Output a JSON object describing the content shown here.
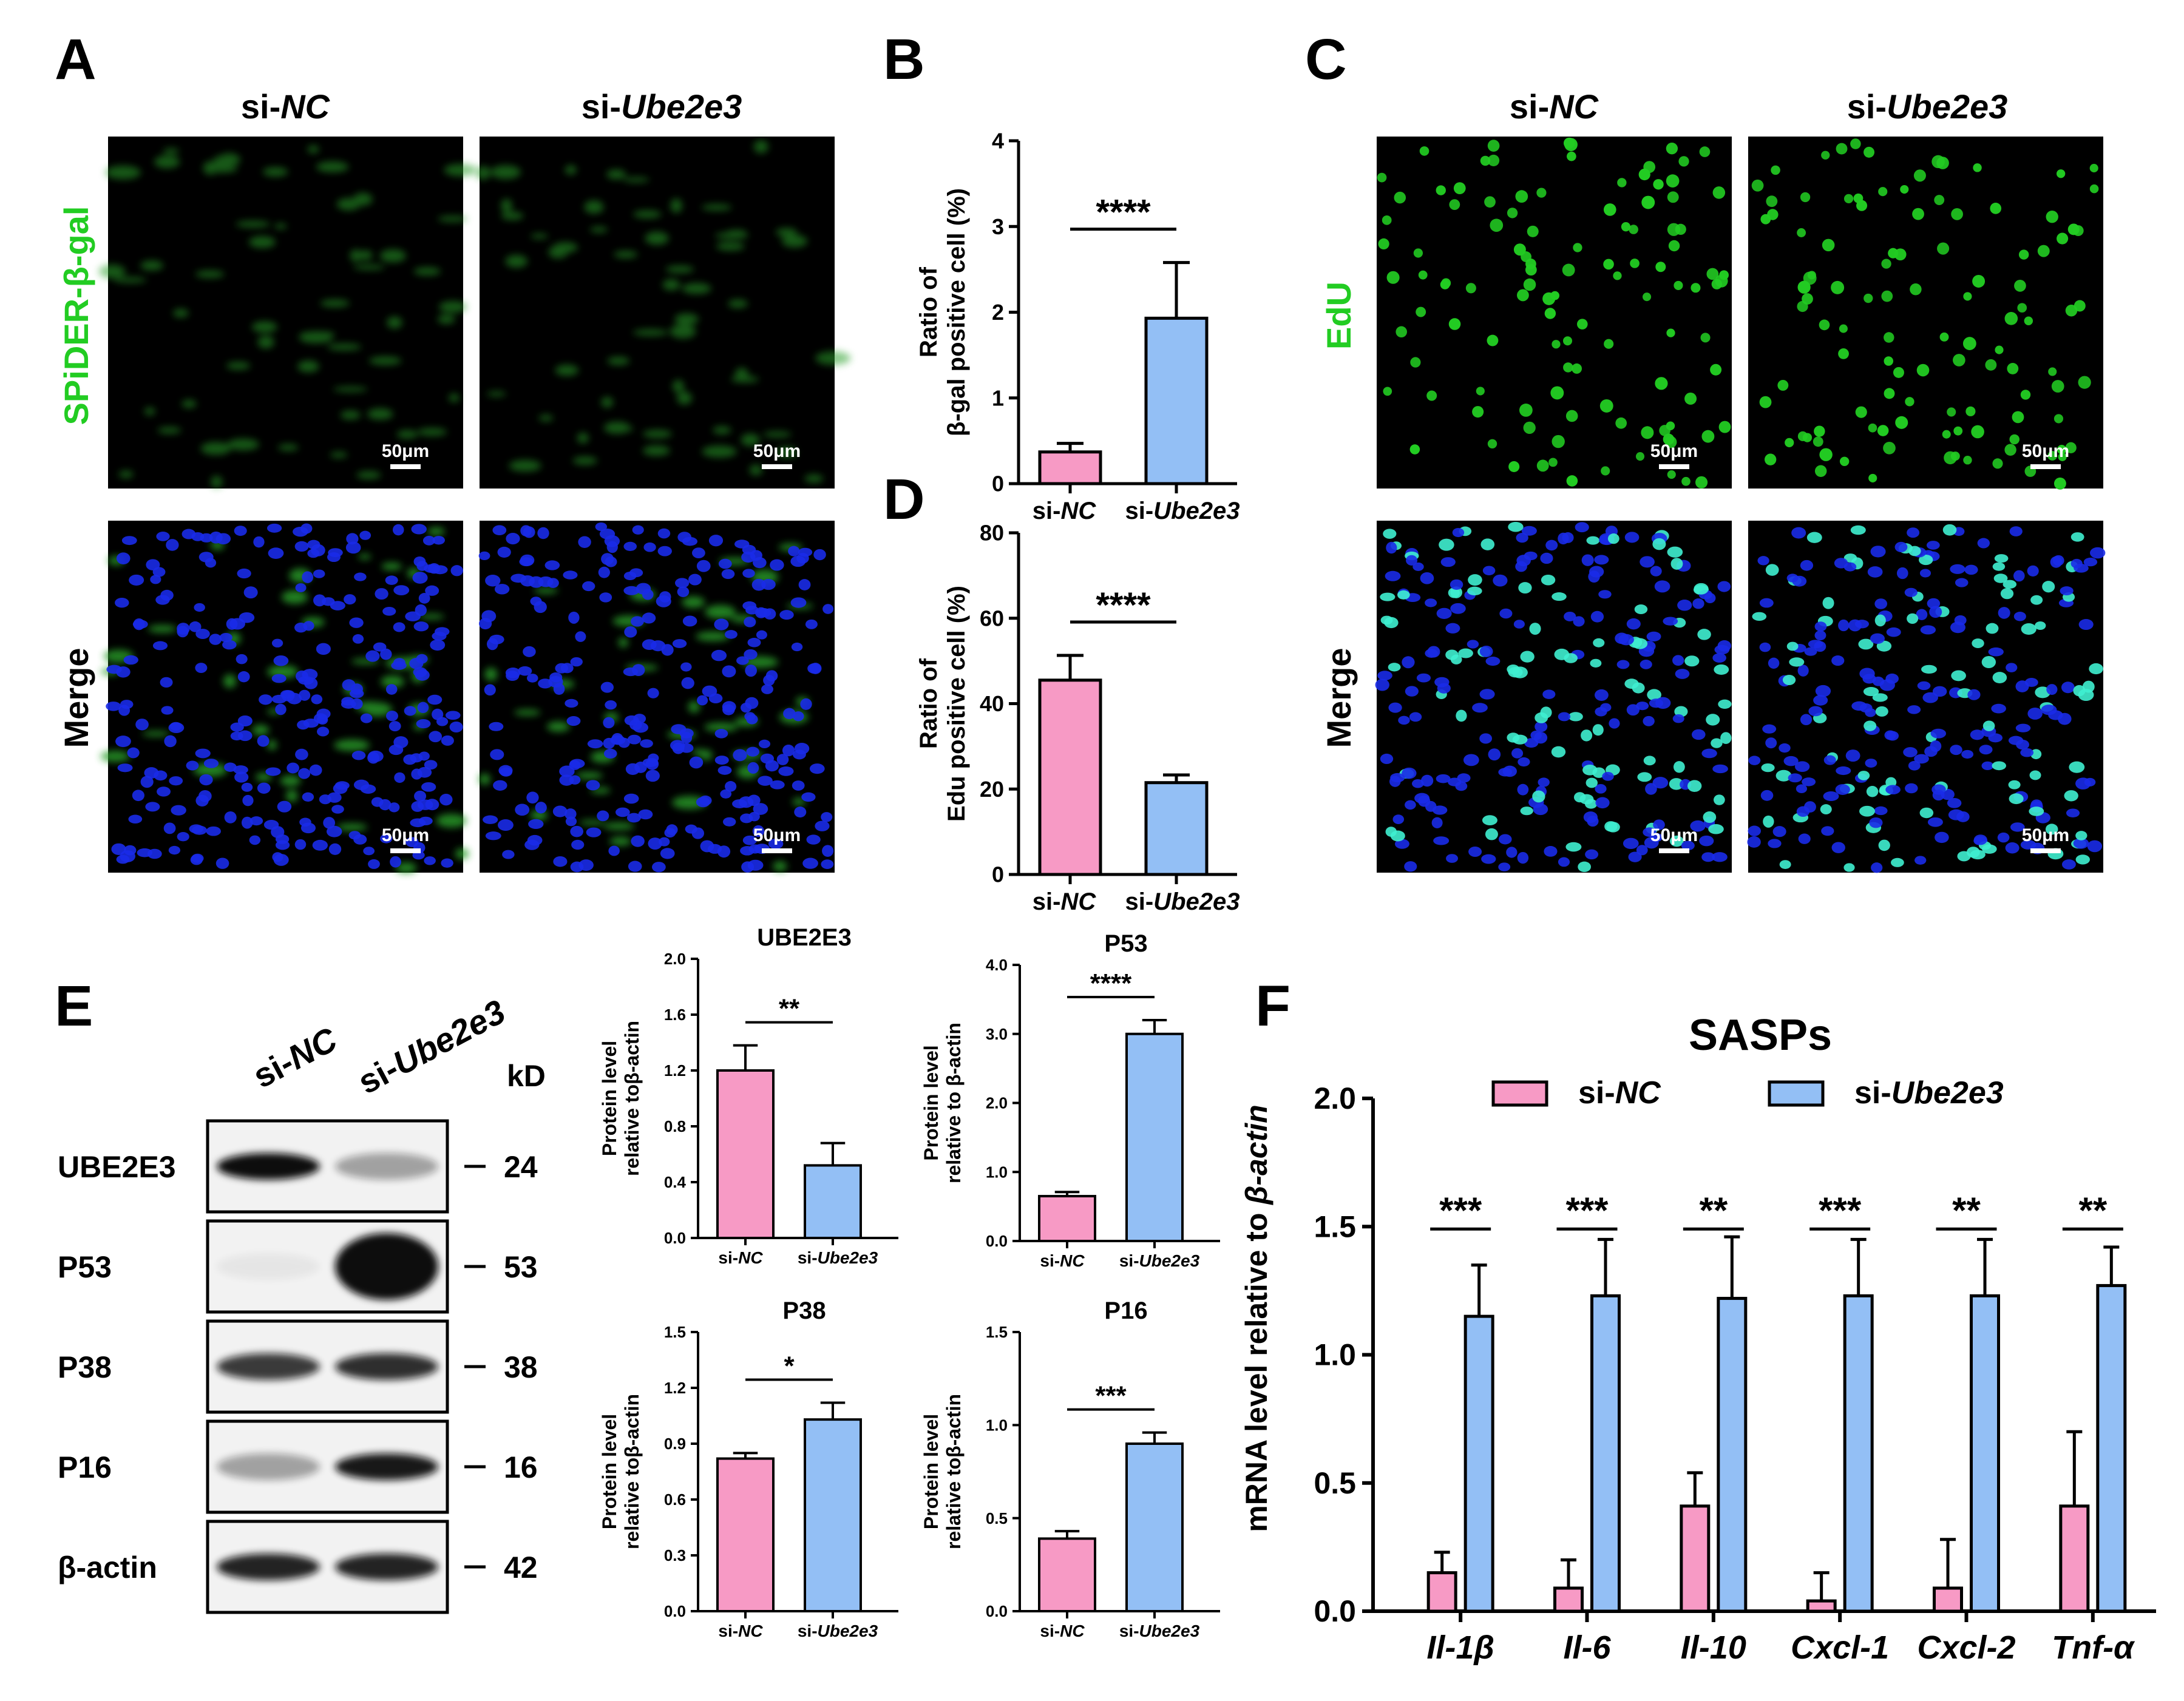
{
  "colors": {
    "si_nc": "#f79ac5",
    "si_ube2e3": "#93bff5",
    "edu_green": "#22cc22",
    "nucleus_blue": "#1a2be8",
    "merge_cyan": "#3ff0d0"
  },
  "panel_a": {
    "letter": "A",
    "col_labels": [
      {
        "prefix": "si-",
        "gene": "NC"
      },
      {
        "prefix": "si-",
        "gene": "Ube2e3"
      }
    ],
    "row_labels": [
      "SPiDER-β-gal",
      "Merge"
    ],
    "scale_label": "50μm"
  },
  "panel_c": {
    "letter": "C",
    "col_labels": [
      {
        "prefix": "si-",
        "gene": "NC"
      },
      {
        "prefix": "si-",
        "gene": "Ube2e3"
      }
    ],
    "row_labels": [
      "EdU",
      "Merge"
    ],
    "scale_label": "50μm"
  },
  "panel_e": {
    "letter": "E",
    "lane_labels": [
      {
        "prefix": "si-",
        "gene": "NC"
      },
      {
        "prefix": "si-",
        "gene": "Ube2e3"
      }
    ],
    "kd_label": "kD",
    "rows": [
      {
        "protein": "UBE2E3",
        "kd": "24",
        "bands": [
          1.0,
          0.35
        ]
      },
      {
        "protein": "P53",
        "kd": "53",
        "bands": [
          0.05,
          1.0
        ]
      },
      {
        "protein": "P38",
        "kd": "38",
        "bands": [
          0.8,
          0.85
        ]
      },
      {
        "protein": "P16",
        "kd": "16",
        "bands": [
          0.35,
          0.95
        ]
      },
      {
        "protein": "β-actin",
        "kd": "42",
        "bands": [
          0.9,
          0.9
        ]
      }
    ]
  },
  "panel_f": {
    "letter": "F"
  },
  "letters": {
    "b": "B",
    "d": "D"
  },
  "chart_data": [
    {
      "id": "B",
      "type": "bar",
      "title": "",
      "ylabel": [
        "Ratio of",
        "β-gal positive cell (%)"
      ],
      "categories": [
        {
          "prefix": "si-",
          "gene": "NC"
        },
        {
          "prefix": "si-",
          "gene": "Ube2e3"
        }
      ],
      "values": [
        0.37,
        1.93
      ],
      "errors": [
        0.1,
        0.65
      ],
      "ylim": [
        0,
        4
      ],
      "yticks": [
        "0",
        "1",
        "2",
        "3",
        "4"
      ],
      "significance": "****"
    },
    {
      "id": "D",
      "type": "bar",
      "title": "",
      "ylabel": [
        "Ratio of",
        "Edu positive cell (%)"
      ],
      "categories": [
        {
          "prefix": "si-",
          "gene": "NC"
        },
        {
          "prefix": "si-",
          "gene": "Ube2e3"
        }
      ],
      "values": [
        45.5,
        21.5
      ],
      "errors": [
        5.8,
        1.8
      ],
      "ylim": [
        0,
        80
      ],
      "yticks": [
        "0",
        "20",
        "40",
        "60",
        "80"
      ],
      "significance": "****"
    },
    {
      "id": "UBE2E3",
      "type": "bar",
      "title": "UBE2E3",
      "ylabel": [
        "Protein level",
        "relative toβ-actin"
      ],
      "categories": [
        {
          "prefix": "si-",
          "gene": "NC"
        },
        {
          "prefix": "si-",
          "gene": "Ube2e3"
        }
      ],
      "values": [
        1.2,
        0.52
      ],
      "errors": [
        0.18,
        0.16
      ],
      "ylim": [
        0,
        2.0
      ],
      "yticks": [
        "0.0",
        "0.4",
        "0.8",
        "1.2",
        "1.6",
        "2.0"
      ],
      "significance": "**"
    },
    {
      "id": "P53",
      "type": "bar",
      "title": "P53",
      "ylabel": [
        "Protein level",
        "relative to β-actin"
      ],
      "categories": [
        {
          "prefix": "si-",
          "gene": "NC"
        },
        {
          "prefix": "si-",
          "gene": "Ube2e3"
        }
      ],
      "values": [
        0.65,
        3.0
      ],
      "errors": [
        0.06,
        0.2
      ],
      "ylim": [
        0,
        4.0
      ],
      "yticks": [
        "0.0",
        "1.0",
        "2.0",
        "3.0",
        "4.0"
      ],
      "significance": "****"
    },
    {
      "id": "P38",
      "type": "bar",
      "title": "P38",
      "ylabel": [
        "Protein level",
        "relative toβ-actin"
      ],
      "categories": [
        {
          "prefix": "si-",
          "gene": "NC"
        },
        {
          "prefix": "si-",
          "gene": "Ube2e3"
        }
      ],
      "values": [
        0.82,
        1.03
      ],
      "errors": [
        0.03,
        0.09
      ],
      "ylim": [
        0,
        1.5
      ],
      "yticks": [
        "0.0",
        "0.3",
        "0.6",
        "0.9",
        "1.2",
        "1.5"
      ],
      "significance": "*"
    },
    {
      "id": "P16",
      "type": "bar",
      "title": "P16",
      "ylabel": [
        "Protein level",
        "relative toβ-actin"
      ],
      "categories": [
        {
          "prefix": "si-",
          "gene": "NC"
        },
        {
          "prefix": "si-",
          "gene": "Ube2e3"
        }
      ],
      "values": [
        0.39,
        0.9
      ],
      "errors": [
        0.04,
        0.06
      ],
      "ylim": [
        0,
        1.5
      ],
      "yticks": [
        "0.0",
        "0.5",
        "1.0",
        "1.5"
      ],
      "significance": "***"
    },
    {
      "id": "F",
      "type": "bar",
      "title": "SASPs",
      "ylabel": [
        "mRNA level relative to ",
        "β-actin"
      ],
      "categories": [
        "Il-1β",
        "Il-6",
        "Il-10",
        "Cxcl-1",
        "Cxcl-2",
        "Tnf-α"
      ],
      "series": [
        {
          "name": {
            "prefix": "si-",
            "gene": "NC"
          },
          "values": [
            0.15,
            0.09,
            0.41,
            0.04,
            0.09,
            0.41
          ],
          "errors": [
            0.08,
            0.11,
            0.13,
            0.11,
            0.19,
            0.29
          ]
        },
        {
          "name": {
            "prefix": "si-",
            "gene": "Ube2e3"
          },
          "values": [
            1.15,
            1.23,
            1.22,
            1.23,
            1.23,
            1.27
          ],
          "errors": [
            0.2,
            0.22,
            0.24,
            0.22,
            0.22,
            0.15
          ]
        }
      ],
      "ylim": [
        0,
        2.0
      ],
      "yticks": [
        "0.0",
        "0.5",
        "1.0",
        "1.5",
        "2.0"
      ],
      "significance": [
        "***",
        "***",
        "**",
        "***",
        "**",
        "**"
      ]
    }
  ]
}
